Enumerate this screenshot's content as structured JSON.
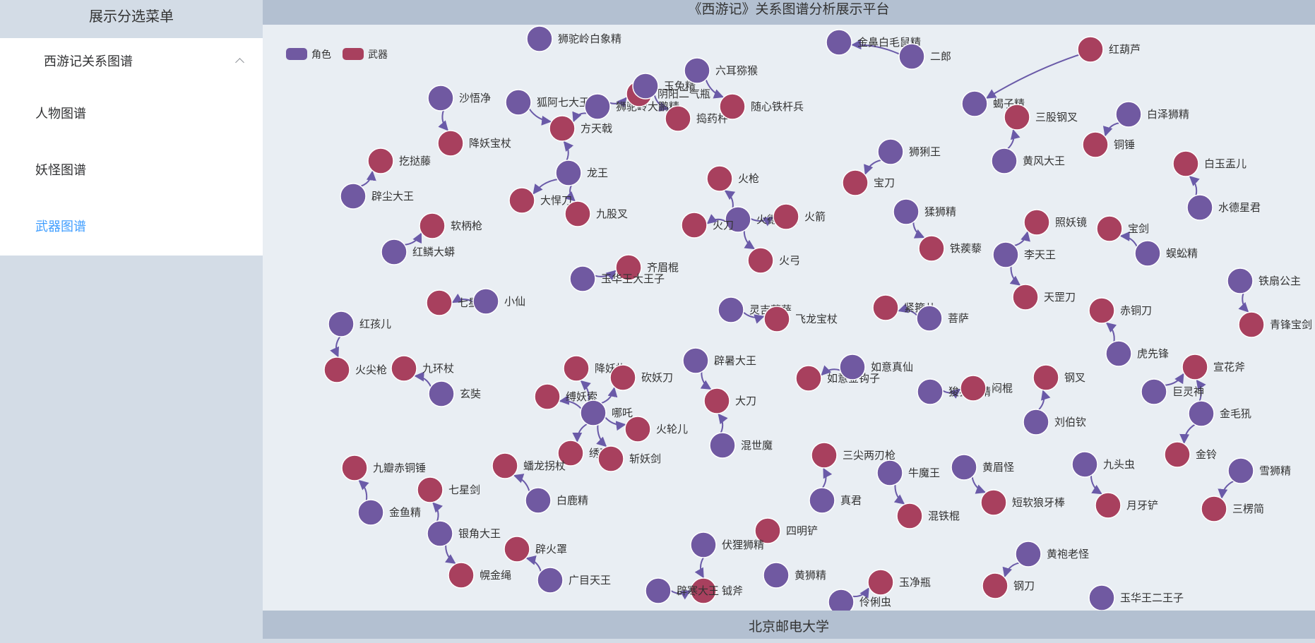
{
  "sidebar": {
    "title": "展示分选菜单",
    "submenu": {
      "label": "西游记关系图谱"
    },
    "items": [
      {
        "label": "人物图谱"
      },
      {
        "label": "妖怪图谱"
      },
      {
        "label": "武器图谱"
      }
    ],
    "active_index": 2
  },
  "header": {
    "title": "《西游记》关系图谱分析展示平台"
  },
  "footer": {
    "text": "北京邮电大学"
  },
  "graph": {
    "legend": [
      {
        "label": "角色",
        "color": "#7059a1"
      },
      {
        "label": "武器",
        "color": "#a8405e"
      }
    ],
    "colors": {
      "role": "#7059a1",
      "weapon": "#a8405e",
      "edge": "#6a5aa8",
      "stroke": "#ffffff"
    },
    "nodes": [
      {
        "id": "n1",
        "label": "狮驼岭白象精",
        "type": "role"
      },
      {
        "id": "n2",
        "label": "金鼻白毛鼠精",
        "type": "role"
      },
      {
        "id": "n3",
        "label": "二郎",
        "type": "role"
      },
      {
        "id": "n4",
        "label": "红葫芦",
        "type": "weapon"
      },
      {
        "id": "n5",
        "label": "沙悟净",
        "type": "role"
      },
      {
        "id": "n6",
        "label": "降妖宝杖",
        "type": "weapon"
      },
      {
        "id": "n7",
        "label": "狐阿七大王",
        "type": "role"
      },
      {
        "id": "n8",
        "label": "狮驼岭大鹏精",
        "type": "role"
      },
      {
        "id": "n9",
        "label": "阴阳二气瓶",
        "type": "weapon"
      },
      {
        "id": "n10",
        "label": "方天戟",
        "type": "weapon"
      },
      {
        "id": "n11",
        "label": "玉兔精",
        "type": "role"
      },
      {
        "id": "n12",
        "label": "捣药杵",
        "type": "weapon"
      },
      {
        "id": "n13",
        "label": "六耳猕猴",
        "type": "role"
      },
      {
        "id": "n14",
        "label": "随心铁杆兵",
        "type": "weapon"
      },
      {
        "id": "n15",
        "label": "蝎子精",
        "type": "role"
      },
      {
        "id": "n16",
        "label": "三股钢叉",
        "type": "weapon"
      },
      {
        "id": "n17",
        "label": "黄风大王",
        "type": "role"
      },
      {
        "id": "n18",
        "label": "白泽狮精",
        "type": "role"
      },
      {
        "id": "n19",
        "label": "铜锤",
        "type": "weapon"
      },
      {
        "id": "n20",
        "label": "白玉盂儿",
        "type": "weapon"
      },
      {
        "id": "n21",
        "label": "水德星君",
        "type": "role"
      },
      {
        "id": "n22",
        "label": "龙王",
        "type": "role"
      },
      {
        "id": "n23",
        "label": "大悍刀",
        "type": "weapon"
      },
      {
        "id": "n24",
        "label": "九股叉",
        "type": "weapon"
      },
      {
        "id": "n25",
        "label": "扢挞藤",
        "type": "weapon"
      },
      {
        "id": "n26",
        "label": "辟尘大王",
        "type": "role"
      },
      {
        "id": "n27",
        "label": "狮猁王",
        "type": "role"
      },
      {
        "id": "n28",
        "label": "宝刀",
        "type": "weapon"
      },
      {
        "id": "n29",
        "label": "火枪",
        "type": "weapon"
      },
      {
        "id": "n30",
        "label": "火德星君",
        "type": "role"
      },
      {
        "id": "n31",
        "label": "火箭",
        "type": "weapon"
      },
      {
        "id": "n32",
        "label": "火刀",
        "type": "weapon"
      },
      {
        "id": "n33",
        "label": "火弓",
        "type": "weapon"
      },
      {
        "id": "n34",
        "label": "猱狮精",
        "type": "role"
      },
      {
        "id": "n35",
        "label": "铁蒺藜",
        "type": "weapon"
      },
      {
        "id": "n36",
        "label": "照妖镜",
        "type": "weapon"
      },
      {
        "id": "n37",
        "label": "李天王",
        "type": "role"
      },
      {
        "id": "n38",
        "label": "天罡刀",
        "type": "weapon"
      },
      {
        "id": "n39",
        "label": "宝剑",
        "type": "weapon"
      },
      {
        "id": "n40",
        "label": "蜈蚣精",
        "type": "role"
      },
      {
        "id": "n41",
        "label": "软柄枪",
        "type": "weapon"
      },
      {
        "id": "n42",
        "label": "红鳞大蟒",
        "type": "role"
      },
      {
        "id": "n43",
        "label": "齐眉棍",
        "type": "weapon"
      },
      {
        "id": "n44",
        "label": "玉华王大王子",
        "type": "role"
      },
      {
        "id": "n45",
        "label": "铁扇公主",
        "type": "role"
      },
      {
        "id": "n46",
        "label": "青锋宝剑",
        "type": "weapon"
      },
      {
        "id": "n47",
        "label": "七星鞭",
        "type": "weapon"
      },
      {
        "id": "n48",
        "label": "小仙",
        "type": "role"
      },
      {
        "id": "n49",
        "label": "灵吉菩萨",
        "type": "role"
      },
      {
        "id": "n50",
        "label": "飞龙宝杖",
        "type": "weapon"
      },
      {
        "id": "n51",
        "label": "紧箍儿",
        "type": "weapon"
      },
      {
        "id": "n52",
        "label": "菩萨",
        "type": "role"
      },
      {
        "id": "n53",
        "label": "赤铜刀",
        "type": "weapon"
      },
      {
        "id": "n54",
        "label": "虎先锋",
        "type": "role"
      },
      {
        "id": "n55",
        "label": "红孩儿",
        "type": "role"
      },
      {
        "id": "n56",
        "label": "火尖枪",
        "type": "weapon"
      },
      {
        "id": "n57",
        "label": "九环杖",
        "type": "weapon"
      },
      {
        "id": "n58",
        "label": "玄奘",
        "type": "role"
      },
      {
        "id": "n59",
        "label": "降妖杵",
        "type": "weapon"
      },
      {
        "id": "n60",
        "label": "砍妖刀",
        "type": "weapon"
      },
      {
        "id": "n61",
        "label": "缚妖索",
        "type": "weapon"
      },
      {
        "id": "n62",
        "label": "哪吒",
        "type": "role"
      },
      {
        "id": "n63",
        "label": "火轮儿",
        "type": "weapon"
      },
      {
        "id": "n64",
        "label": "绣球儿",
        "type": "weapon"
      },
      {
        "id": "n65",
        "label": "斩妖剑",
        "type": "weapon"
      },
      {
        "id": "n66",
        "label": "辟暑大王",
        "type": "role"
      },
      {
        "id": "n67",
        "label": "大刀",
        "type": "weapon"
      },
      {
        "id": "n68",
        "label": "混世魔",
        "type": "role"
      },
      {
        "id": "n69",
        "label": "如意金钩子",
        "type": "weapon"
      },
      {
        "id": "n70",
        "label": "如意真仙",
        "type": "role"
      },
      {
        "id": "n71",
        "label": "狻猊狮精",
        "type": "role"
      },
      {
        "id": "n72",
        "label": "闷棍",
        "type": "weapon"
      },
      {
        "id": "n73",
        "label": "钢叉",
        "type": "weapon"
      },
      {
        "id": "n74",
        "label": "刘伯钦",
        "type": "role"
      },
      {
        "id": "n75",
        "label": "宣花斧",
        "type": "weapon"
      },
      {
        "id": "n76",
        "label": "巨灵神",
        "type": "role"
      },
      {
        "id": "n77",
        "label": "金毛犼",
        "type": "role"
      },
      {
        "id": "n78",
        "label": "金铃",
        "type": "weapon"
      },
      {
        "id": "n79",
        "label": "九瓣赤铜锤",
        "type": "weapon"
      },
      {
        "id": "n80",
        "label": "金鱼精",
        "type": "role"
      },
      {
        "id": "n81",
        "label": "七星剑",
        "type": "weapon"
      },
      {
        "id": "n82",
        "label": "银角大王",
        "type": "role"
      },
      {
        "id": "n83",
        "label": "幌金绳",
        "type": "weapon"
      },
      {
        "id": "n84",
        "label": "蟠龙拐杖",
        "type": "weapon"
      },
      {
        "id": "n85",
        "label": "白鹿精",
        "type": "role"
      },
      {
        "id": "n86",
        "label": "辟火罩",
        "type": "weapon"
      },
      {
        "id": "n87",
        "label": "广目天王",
        "type": "role"
      },
      {
        "id": "n88",
        "label": "三尖两刃枪",
        "type": "weapon"
      },
      {
        "id": "n89",
        "label": "真君",
        "type": "role"
      },
      {
        "id": "n90",
        "label": "牛魔王",
        "type": "role"
      },
      {
        "id": "n91",
        "label": "混铁棍",
        "type": "weapon"
      },
      {
        "id": "n92",
        "label": "黄眉怪",
        "type": "role"
      },
      {
        "id": "n93",
        "label": "短软狼牙棒",
        "type": "weapon"
      },
      {
        "id": "n94",
        "label": "九头虫",
        "type": "role"
      },
      {
        "id": "n95",
        "label": "月牙铲",
        "type": "weapon"
      },
      {
        "id": "n96",
        "label": "雪狮精",
        "type": "role"
      },
      {
        "id": "n97",
        "label": "三楞简",
        "type": "weapon"
      },
      {
        "id": "n98",
        "label": "四明铲",
        "type": "weapon"
      },
      {
        "id": "n99",
        "label": "伏狸狮精",
        "type": "role"
      },
      {
        "id": "n100",
        "label": "黄狮精",
        "type": "role"
      },
      {
        "id": "n101",
        "label": "钺斧",
        "type": "weapon"
      },
      {
        "id": "n102",
        "label": "辟寒大王",
        "type": "role"
      },
      {
        "id": "n103",
        "label": "伶俐虫",
        "type": "role"
      },
      {
        "id": "n104",
        "label": "玉净瓶",
        "type": "weapon"
      },
      {
        "id": "n105",
        "label": "黄袍老怪",
        "type": "role"
      },
      {
        "id": "n106",
        "label": "钢刀",
        "type": "weapon"
      },
      {
        "id": "n107",
        "label": "玉华王二王子",
        "type": "role"
      }
    ],
    "edges": [
      [
        "n5",
        "n6"
      ],
      [
        "n7",
        "n10"
      ],
      [
        "n8",
        "n9"
      ],
      [
        "n8",
        "n10"
      ],
      [
        "n11",
        "n12"
      ],
      [
        "n13",
        "n14"
      ],
      [
        "n17",
        "n16"
      ],
      [
        "n18",
        "n19"
      ],
      [
        "n21",
        "n20"
      ],
      [
        "n22",
        "n10"
      ],
      [
        "n22",
        "n23"
      ],
      [
        "n22",
        "n24"
      ],
      [
        "n26",
        "n25"
      ],
      [
        "n27",
        "n28"
      ],
      [
        "n30",
        "n29"
      ],
      [
        "n30",
        "n31"
      ],
      [
        "n30",
        "n32"
      ],
      [
        "n30",
        "n33"
      ],
      [
        "n34",
        "n35"
      ],
      [
        "n37",
        "n36"
      ],
      [
        "n37",
        "n38"
      ],
      [
        "n40",
        "n39"
      ],
      [
        "n42",
        "n41"
      ],
      [
        "n44",
        "n43"
      ],
      [
        "n45",
        "n46"
      ],
      [
        "n48",
        "n47"
      ],
      [
        "n49",
        "n50"
      ],
      [
        "n52",
        "n51"
      ],
      [
        "n54",
        "n53"
      ],
      [
        "n55",
        "n56"
      ],
      [
        "n58",
        "n57"
      ],
      [
        "n62",
        "n59"
      ],
      [
        "n62",
        "n60"
      ],
      [
        "n62",
        "n61"
      ],
      [
        "n62",
        "n63"
      ],
      [
        "n62",
        "n64"
      ],
      [
        "n62",
        "n65"
      ],
      [
        "n66",
        "n67"
      ],
      [
        "n68",
        "n67"
      ],
      [
        "n70",
        "n69"
      ],
      [
        "n71",
        "n72"
      ],
      [
        "n74",
        "n73"
      ],
      [
        "n76",
        "n75"
      ],
      [
        "n77",
        "n75"
      ],
      [
        "n77",
        "n78"
      ],
      [
        "n80",
        "n79"
      ],
      [
        "n82",
        "n81"
      ],
      [
        "n82",
        "n83"
      ],
      [
        "n85",
        "n84"
      ],
      [
        "n87",
        "n86"
      ],
      [
        "n89",
        "n88"
      ],
      [
        "n90",
        "n91"
      ],
      [
        "n92",
        "n93"
      ],
      [
        "n94",
        "n95"
      ],
      [
        "n96",
        "n97"
      ],
      [
        "n99",
        "n101"
      ],
      [
        "n102",
        "n101"
      ],
      [
        "n103",
        "n104"
      ],
      [
        "n105",
        "n106"
      ],
      [
        "n3",
        "n2"
      ],
      [
        "n4",
        "n15"
      ]
    ]
  }
}
